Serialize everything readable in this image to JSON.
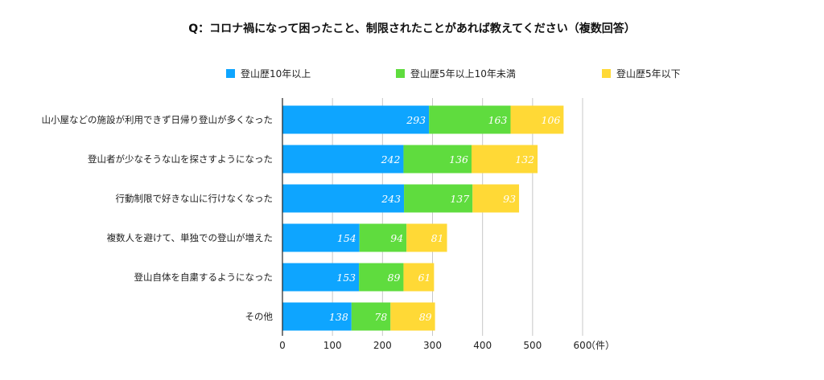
{
  "chart_data": {
    "type": "bar",
    "orientation": "horizontal",
    "stacked": true,
    "title": "Q：コロナ禍になって困ったこと、制限されたことがあれば教えてください（複数回答）",
    "categories": [
      "山小屋などの施設が利用できず日帰り登山が多くなった",
      "登山者が少なそうな山を探さすようになった",
      "行動制限で好きな山に行けなくなった",
      "複数人を避けて、単独での登山が増えた",
      "登山自体を自粛するようになった",
      "その他"
    ],
    "series": [
      {
        "name": "登山歴10年以上",
        "color": "#0ea5ff",
        "values": [
          293,
          242,
          243,
          154,
          153,
          138
        ]
      },
      {
        "name": "登山歴5年以上10年未満",
        "color": "#5fdc3e",
        "values": [
          163,
          136,
          137,
          94,
          89,
          78
        ]
      },
      {
        "name": "登山歴5年以下",
        "color": "#ffd936",
        "values": [
          106,
          132,
          93,
          81,
          61,
          89
        ]
      }
    ],
    "xlim": [
      0,
      600
    ],
    "xticks": [
      "0",
      "100",
      "200",
      "300",
      "400",
      "500",
      "600"
    ],
    "unit": "（件）",
    "grid": true,
    "legend_position": "top"
  }
}
